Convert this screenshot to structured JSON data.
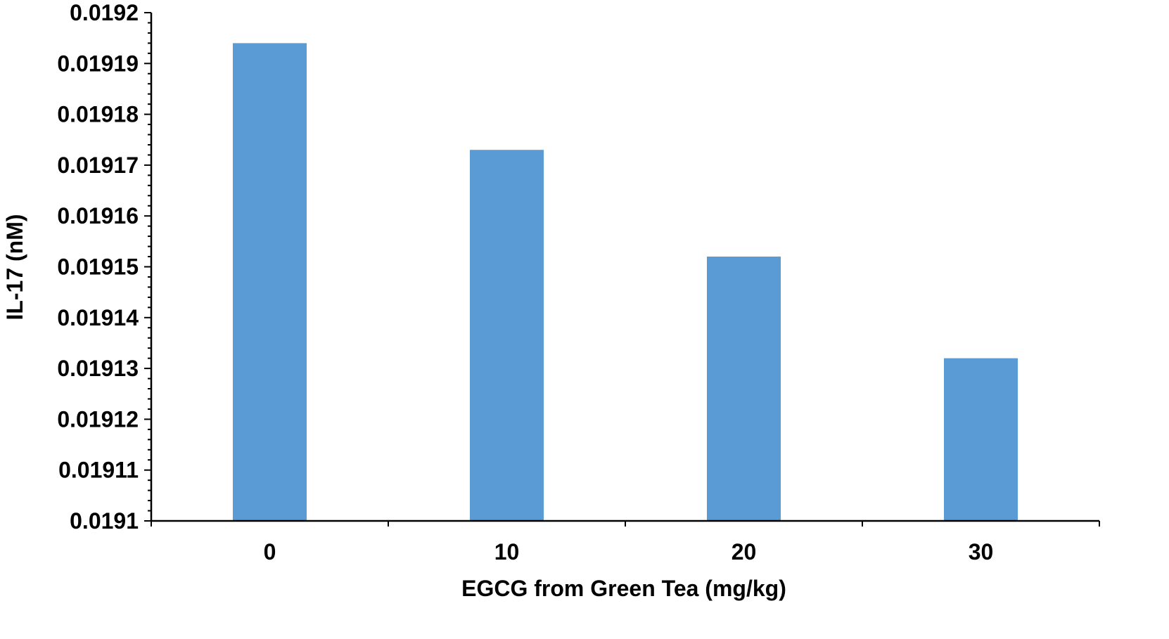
{
  "chart_data": {
    "type": "bar",
    "title": "",
    "xlabel": "EGCG from Green Tea (mg/kg)",
    "ylabel": "IL-17 (nM)",
    "categories": [
      "0",
      "10",
      "20",
      "30"
    ],
    "values": [
      0.019194,
      0.019173,
      0.019152,
      0.019132
    ],
    "ylim": [
      0.0191,
      0.0192
    ],
    "yticks": [
      0.0191,
      0.01911,
      0.01912,
      0.01913,
      0.01914,
      0.01915,
      0.01916,
      0.01917,
      0.01918,
      0.01919,
      0.0192
    ],
    "ytick_labels": [
      "0.0191",
      "0.01911",
      "0.01912",
      "0.01913",
      "0.01914",
      "0.01915",
      "0.01916",
      "0.01917",
      "0.01918",
      "0.01919",
      "0.0192"
    ],
    "bar_color": "#5B9BD5",
    "grid": false,
    "legend": "none"
  }
}
